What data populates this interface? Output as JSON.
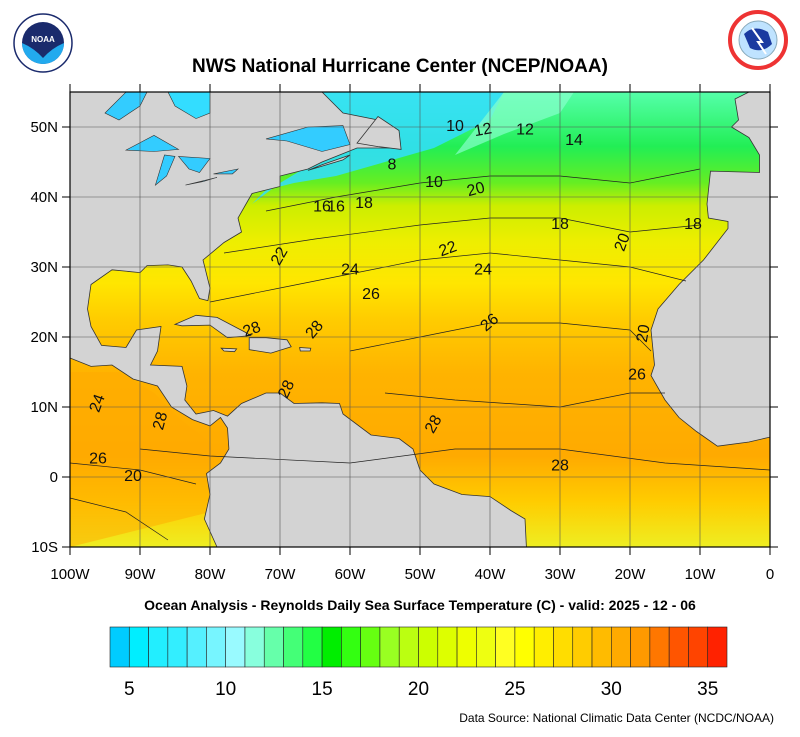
{
  "header": {
    "title": "NWS National Hurricane Center (NCEP/NOAA)",
    "left_logo": "NOAA",
    "right_logo": "NATIONAL WEATHER SERVICE"
  },
  "map": {
    "subtitle": "Ocean Analysis - Reynolds Daily Sea Surface Temperature (C) - valid: 2025 - 12 - 06",
    "lon_labels": [
      "100W",
      "90W",
      "80W",
      "70W",
      "60W",
      "50W",
      "40W",
      "30W",
      "20W",
      "10W",
      "0"
    ],
    "lat_labels": [
      "50N",
      "40N",
      "30N",
      "20N",
      "10N",
      "0",
      "10S"
    ],
    "lon_range": [
      -100,
      0
    ],
    "lat_range": [
      -10,
      55
    ],
    "land_color": "#d3d3d3",
    "contour_labels": [
      "10",
      "12",
      "12",
      "14",
      "8",
      "10",
      "20",
      "16",
      "16",
      "18",
      "18",
      "20",
      "18",
      "22",
      "22",
      "24",
      "24",
      "26",
      "26",
      "28",
      "28",
      "20",
      "26",
      "28",
      "28",
      "28",
      "28",
      "26",
      "24",
      "20"
    ]
  },
  "colorbar": {
    "min": 4,
    "max": 36,
    "tick_labels": [
      "5",
      "10",
      "15",
      "20",
      "25",
      "30",
      "35"
    ],
    "colors": [
      "#00ccff",
      "#00eeff",
      "#22eeff",
      "#33eeff",
      "#55f0ff",
      "#77f5ff",
      "#99faff",
      "#88ffdd",
      "#66ffaa",
      "#44ff77",
      "#22ff44",
      "#00ee00",
      "#33ff11",
      "#66ff11",
      "#99ff22",
      "#bbff11",
      "#ccff00",
      "#ddff00",
      "#eeff00",
      "#eeff11",
      "#ffff22",
      "#ffff00",
      "#ffee00",
      "#ffdd00",
      "#ffcc00",
      "#ffbb00",
      "#ffaa00",
      "#ff9900",
      "#ff7700",
      "#ff5500",
      "#ff4400",
      "#ff2200"
    ]
  },
  "footer": {
    "source": "Data Source: National Climatic Data Center (NCDC/NOAA)"
  }
}
